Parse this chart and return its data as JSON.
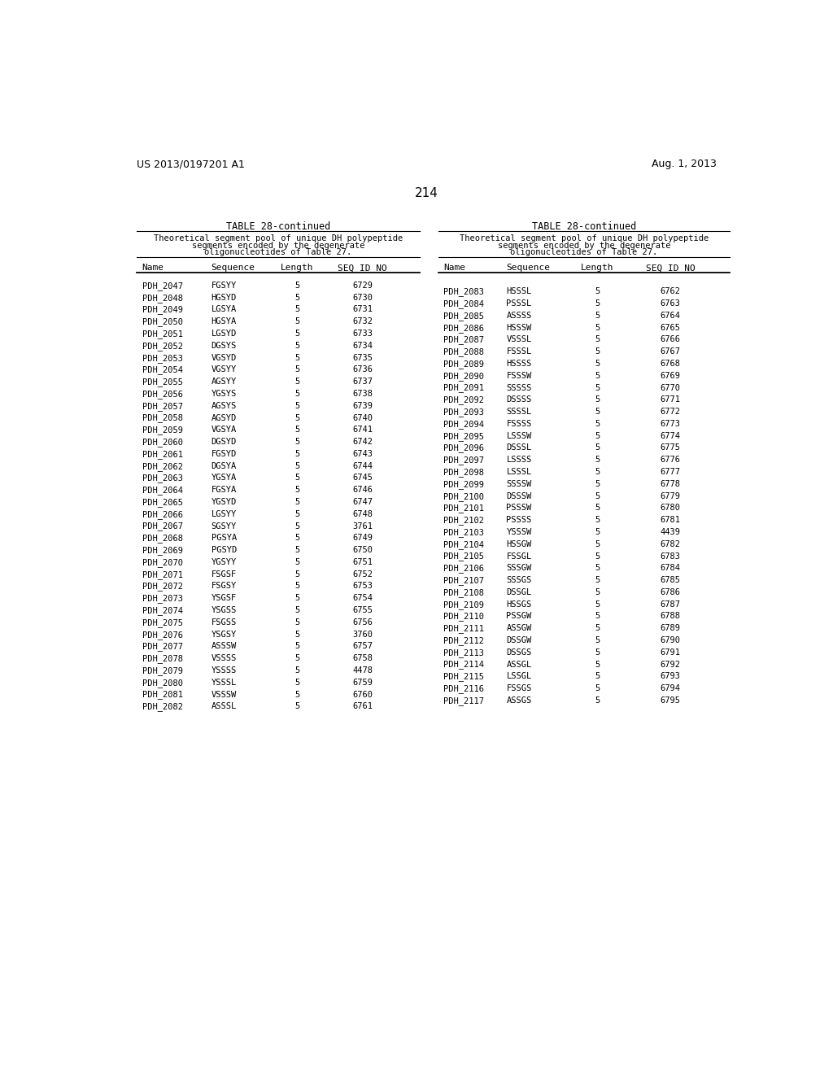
{
  "page_number": "214",
  "left_header": "US 2013/0197201 A1",
  "right_header": "Aug. 1, 2013",
  "table_title": "TABLE 28-continued",
  "table_subtitle_lines": [
    "Theoretical segment pool of unique DH polypeptide",
    "segments encoded by the degenerate",
    "oligonucleotides of Table 27."
  ],
  "col_headers": [
    "Name",
    "Sequence",
    "Length",
    "SEQ ID NO"
  ],
  "left_rows": [
    [
      "PDH_2047",
      "FGSYY",
      "5",
      "6729"
    ],
    [
      "PDH_2048",
      "HGSYD",
      "5",
      "6730"
    ],
    [
      "PDH_2049",
      "LGSYA",
      "5",
      "6731"
    ],
    [
      "PDH_2050",
      "HGSYA",
      "5",
      "6732"
    ],
    [
      "PDH_2051",
      "LGSYD",
      "5",
      "6733"
    ],
    [
      "PDH_2052",
      "DGSYS",
      "5",
      "6734"
    ],
    [
      "PDH_2053",
      "VGSYD",
      "5",
      "6735"
    ],
    [
      "PDH_2054",
      "VGSYY",
      "5",
      "6736"
    ],
    [
      "PDH_2055",
      "AGSYY",
      "5",
      "6737"
    ],
    [
      "PDH_2056",
      "YGSYS",
      "5",
      "6738"
    ],
    [
      "PDH_2057",
      "AGSYS",
      "5",
      "6739"
    ],
    [
      "PDH_2058",
      "AGSYD",
      "5",
      "6740"
    ],
    [
      "PDH_2059",
      "VGSYA",
      "5",
      "6741"
    ],
    [
      "PDH_2060",
      "DGSYD",
      "5",
      "6742"
    ],
    [
      "PDH_2061",
      "FGSYD",
      "5",
      "6743"
    ],
    [
      "PDH_2062",
      "DGSYA",
      "5",
      "6744"
    ],
    [
      "PDH_2063",
      "YGSYA",
      "5",
      "6745"
    ],
    [
      "PDH_2064",
      "FGSYA",
      "5",
      "6746"
    ],
    [
      "PDH_2065",
      "YGSYD",
      "5",
      "6747"
    ],
    [
      "PDH_2066",
      "LGSYY",
      "5",
      "6748"
    ],
    [
      "PDH_2067",
      "SGSYY",
      "5",
      "3761"
    ],
    [
      "PDH_2068",
      "PGSYA",
      "5",
      "6749"
    ],
    [
      "PDH_2069",
      "PGSYD",
      "5",
      "6750"
    ],
    [
      "PDH_2070",
      "YGSYY",
      "5",
      "6751"
    ],
    [
      "PDH_2071",
      "FSGSF",
      "5",
      "6752"
    ],
    [
      "PDH_2072",
      "FSGSY",
      "5",
      "6753"
    ],
    [
      "PDH_2073",
      "YSGSF",
      "5",
      "6754"
    ],
    [
      "PDH_2074",
      "YSGSS",
      "5",
      "6755"
    ],
    [
      "PDH_2075",
      "FSGSS",
      "5",
      "6756"
    ],
    [
      "PDH_2076",
      "YSGSY",
      "5",
      "3760"
    ],
    [
      "PDH_2077",
      "ASSSW",
      "5",
      "6757"
    ],
    [
      "PDH_2078",
      "VSSSS",
      "5",
      "6758"
    ],
    [
      "PDH_2079",
      "YSSSS",
      "5",
      "4478"
    ],
    [
      "PDH_2080",
      "YSSSL",
      "5",
      "6759"
    ],
    [
      "PDH_2081",
      "VSSSW",
      "5",
      "6760"
    ],
    [
      "PDH_2082",
      "ASSSL",
      "5",
      "6761"
    ]
  ],
  "right_rows": [
    [
      "PDH_2083",
      "HSSSL",
      "5",
      "6762"
    ],
    [
      "PDH_2084",
      "PSSSL",
      "5",
      "6763"
    ],
    [
      "PDH_2085",
      "ASSSS",
      "5",
      "6764"
    ],
    [
      "PDH_2086",
      "HSSSW",
      "5",
      "6765"
    ],
    [
      "PDH_2087",
      "VSSSL",
      "5",
      "6766"
    ],
    [
      "PDH_2088",
      "FSSSL",
      "5",
      "6767"
    ],
    [
      "PDH_2089",
      "HSSSS",
      "5",
      "6768"
    ],
    [
      "PDH_2090",
      "FSSSW",
      "5",
      "6769"
    ],
    [
      "PDH_2091",
      "SSSSS",
      "5",
      "6770"
    ],
    [
      "PDH_2092",
      "DSSSS",
      "5",
      "6771"
    ],
    [
      "PDH_2093",
      "SSSSL",
      "5",
      "6772"
    ],
    [
      "PDH_2094",
      "FSSSS",
      "5",
      "6773"
    ],
    [
      "PDH_2095",
      "LSSSW",
      "5",
      "6774"
    ],
    [
      "PDH_2096",
      "DSSSL",
      "5",
      "6775"
    ],
    [
      "PDH_2097",
      "LSSSS",
      "5",
      "6776"
    ],
    [
      "PDH_2098",
      "LSSSL",
      "5",
      "6777"
    ],
    [
      "PDH_2099",
      "SSSSW",
      "5",
      "6778"
    ],
    [
      "PDH_2100",
      "DSSSW",
      "5",
      "6779"
    ],
    [
      "PDH_2101",
      "PSSSW",
      "5",
      "6780"
    ],
    [
      "PDH_2102",
      "PSSSS",
      "5",
      "6781"
    ],
    [
      "PDH_2103",
      "YSSSW",
      "5",
      "4439"
    ],
    [
      "PDH_2104",
      "HSSGW",
      "5",
      "6782"
    ],
    [
      "PDH_2105",
      "FSSGL",
      "5",
      "6783"
    ],
    [
      "PDH_2106",
      "SSSGW",
      "5",
      "6784"
    ],
    [
      "PDH_2107",
      "SSSGS",
      "5",
      "6785"
    ],
    [
      "PDH_2108",
      "DSSGL",
      "5",
      "6786"
    ],
    [
      "PDH_2109",
      "HSSGS",
      "5",
      "6787"
    ],
    [
      "PDH_2110",
      "PSSGW",
      "5",
      "6788"
    ],
    [
      "PDH_2111",
      "ASSGW",
      "5",
      "6789"
    ],
    [
      "PDH_2112",
      "DSSGW",
      "5",
      "6790"
    ],
    [
      "PDH_2113",
      "DSSGS",
      "5",
      "6791"
    ],
    [
      "PDH_2114",
      "ASSGL",
      "5",
      "6792"
    ],
    [
      "PDH_2115",
      "LSSGL",
      "5",
      "6793"
    ],
    [
      "PDH_2116",
      "FSSGS",
      "5",
      "6794"
    ],
    [
      "PDH_2117",
      "ASSGS",
      "5",
      "6795"
    ]
  ],
  "bg_color": "#ffffff",
  "text_color": "#000000"
}
